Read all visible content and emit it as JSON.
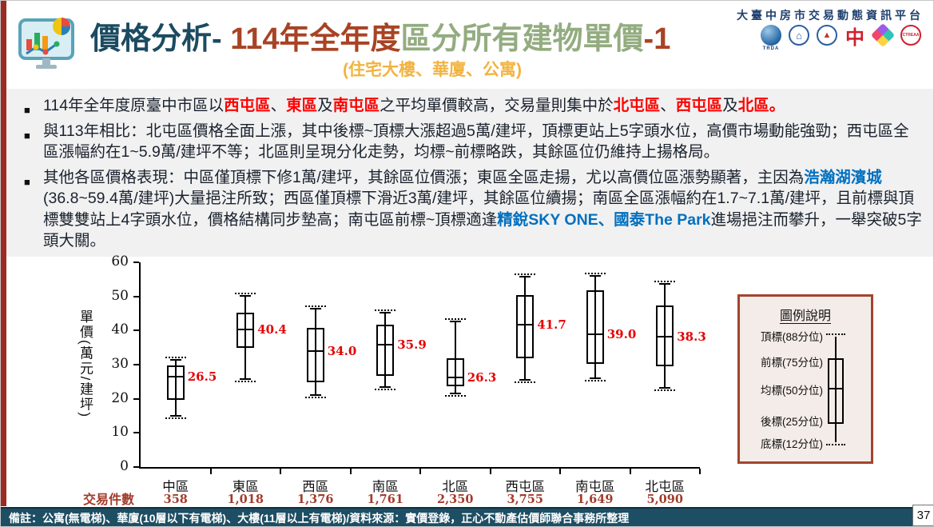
{
  "header": {
    "title_parts": [
      {
        "text": "價格分析- ",
        "color": "#1b4b61"
      },
      {
        "text": "114年全年度",
        "color": "#a84324"
      },
      {
        "text": "區分所有建物單價",
        "color": "#93ac80"
      },
      {
        "text": "-1",
        "color": "#a84324"
      }
    ],
    "subtitle": "(住宅大樓、華廈、公寓)",
    "platform_name": "大臺中房市交易動態資訊平台",
    "logo_labels": {
      "trda": "TRDA",
      "zhong": "中",
      "ctreaa": "CTREAA"
    }
  },
  "bullets": [
    {
      "segments": [
        {
          "t": "114年全年度原臺中市區以"
        },
        {
          "t": "西屯區",
          "c": "red"
        },
        {
          "t": "、"
        },
        {
          "t": "東區",
          "c": "red"
        },
        {
          "t": "及"
        },
        {
          "t": "南屯區",
          "c": "red"
        },
        {
          "t": "之平均單價較高，交易量則集中於"
        },
        {
          "t": "北屯區",
          "c": "red"
        },
        {
          "t": "、"
        },
        {
          "t": "西屯區",
          "c": "red"
        },
        {
          "t": "及"
        },
        {
          "t": "北區。",
          "c": "red"
        }
      ]
    },
    {
      "segments": [
        {
          "t": "與113年相比：北屯區價格全面上漲，其中後標~頂標大漲超過5萬/建坪，頂標更站上5字頭水位，高價市場動能強勁；西屯區全區漲幅約在1~5.9萬/建坪不等；北區則呈現分化走勢，均標~前標略跌，其餘區位仍維持上揚格局。"
        }
      ]
    },
    {
      "segments": [
        {
          "t": "其他各區價格表現：中區僅頂標下修1萬/建坪，其餘區位價漲；東區全區走揚，尤以高價位區漲勢顯著，主因為"
        },
        {
          "t": "浩瀚湖濱城",
          "c": "blue"
        },
        {
          "t": "(36.8~59.4萬/建坪)大量挹注所致；西區僅頂標下滑近3萬/建坪，其餘區位續揚；南區全區漲幅約在1.7~7.1萬/建坪，且前標與頂標雙雙站上4字頭水位，價格結構同步墊高；南屯區前標~頂標適逢"
        },
        {
          "t": "精銳SKY ONE、國泰The Park",
          "c": "blue"
        },
        {
          "t": "進場挹注而攀升，一舉突破5字頭大關。"
        }
      ]
    }
  ],
  "chart_data": {
    "type": "boxplot",
    "ylabel": "單價(萬元/建坪)",
    "ylim": [
      0,
      60
    ],
    "yticks": [
      0,
      10,
      20,
      30,
      40,
      50,
      60
    ],
    "percentiles": [
      "底標(12分位)",
      "後標(25分位)",
      "均標(50分位)",
      "前標(75分位)",
      "頂標(88分位)"
    ],
    "counts_label": "交易件數",
    "median_label_color": "#e60000",
    "categories": [
      "中區",
      "東區",
      "西區",
      "南區",
      "北區",
      "西屯區",
      "南屯區",
      "北屯區"
    ],
    "series": [
      {
        "district": "中區",
        "p12": 15.0,
        "p25": 19.8,
        "p50": 26.5,
        "p75": 29.7,
        "p88": 31.5,
        "median_label": "26.5",
        "count": "358"
      },
      {
        "district": "東區",
        "p12": 25.8,
        "p25": 34.9,
        "p50": 40.4,
        "p75": 45.2,
        "p88": 50.2,
        "median_label": "40.4",
        "count": "1,018"
      },
      {
        "district": "西區",
        "p12": 21.1,
        "p25": 24.8,
        "p50": 34.0,
        "p75": 40.7,
        "p88": 46.3,
        "median_label": "34.0",
        "count": "1,376"
      },
      {
        "district": "南區",
        "p12": 23.4,
        "p25": 26.7,
        "p50": 35.9,
        "p75": 41.7,
        "p88": 45.2,
        "median_label": "35.9",
        "count": "1,761"
      },
      {
        "district": "北區",
        "p12": 21.6,
        "p25": 23.7,
        "p50": 26.3,
        "p75": 31.9,
        "p88": 42.6,
        "median_label": "26.3",
        "count": "2,350"
      },
      {
        "district": "西屯區",
        "p12": 25.5,
        "p25": 31.9,
        "p50": 41.7,
        "p75": 50.4,
        "p88": 55.8,
        "median_label": "41.7",
        "count": "3,755"
      },
      {
        "district": "南屯區",
        "p12": 25.9,
        "p25": 30.2,
        "p50": 39.0,
        "p75": 51.8,
        "p88": 56.1,
        "median_label": "39.0",
        "count": "1,649"
      },
      {
        "district": "北屯區",
        "p12": 23.1,
        "p25": 29.6,
        "p50": 38.3,
        "p75": 47.3,
        "p88": 53.7,
        "median_label": "38.3",
        "count": "5,090"
      }
    ]
  },
  "legend": {
    "title": "圖例說明",
    "items": [
      "頂標(88分位)",
      "前標(75分位)",
      "均標(50分位)",
      "後標(25分位)",
      "底標(12分位)"
    ]
  },
  "footer": {
    "note": "備註：公寓(無電梯)、華廈(10層以下有電梯)、大樓(11層以上有電梯)/資料來源：實價登錄，正心不動產估價師聯合事務所整理",
    "page": "37"
  }
}
